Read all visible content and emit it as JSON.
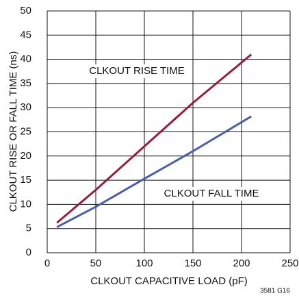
{
  "chart_data": {
    "type": "line",
    "xlabel": "CLKOUT CAPACITIVE LOAD (pF)",
    "ylabel": "CLKOUT RISE OR FALL TIME (ns)",
    "note": "3581 G16",
    "x": [
      10,
      50,
      100,
      150,
      210
    ],
    "series": [
      {
        "name": "CLKOUT RISE TIME",
        "color": "#9b1b3d",
        "values": [
          6.2,
          13,
          22,
          31,
          41
        ]
      },
      {
        "name": "CLKOUT FALL TIME",
        "color": "#4a5ea8",
        "values": [
          5.3,
          9.5,
          15.3,
          21,
          28.2
        ]
      }
    ],
    "xlim": [
      0,
      250
    ],
    "xticks": [
      0,
      50,
      100,
      150,
      200,
      250
    ],
    "ylim": [
      0,
      50
    ],
    "yticks": [
      0,
      5,
      10,
      15,
      20,
      25,
      30,
      35,
      40,
      45,
      50
    ],
    "grid": true
  }
}
